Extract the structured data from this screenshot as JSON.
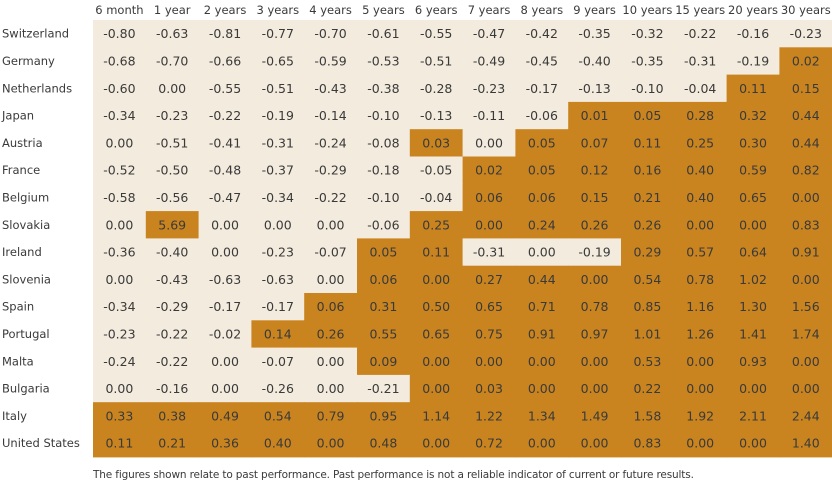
{
  "chart_data": {
    "type": "heatmap",
    "title": "",
    "xlabel": "",
    "ylabel": "",
    "columns": [
      "6 month",
      "1 year",
      "2 years",
      "3 years",
      "4 years",
      "5 years",
      "6 years",
      "7 years",
      "8 years",
      "9 years",
      "10 years",
      "15 years",
      "20 years",
      "30 years"
    ],
    "rows": [
      "Switzerland",
      "Germany",
      "Netherlands",
      "Japan",
      "Austria",
      "France",
      "Belgium",
      "Slovakia",
      "Ireland",
      "Slovenia",
      "Spain",
      "Portugal",
      "Malta",
      "Bulgaria",
      "Italy",
      "United States"
    ],
    "values": [
      [
        "-0.80",
        "-0.63",
        "-0.81",
        "-0.77",
        "-0.70",
        "-0.61",
        "-0.55",
        "-0.47",
        "-0.42",
        "-0.35",
        "-0.32",
        "-0.22",
        "-0.16",
        "-0.23"
      ],
      [
        "-0.68",
        "-0.70",
        "-0.66",
        "-0.65",
        "-0.59",
        "-0.53",
        "-0.51",
        "-0.49",
        "-0.45",
        "-0.40",
        "-0.35",
        "-0.31",
        "-0.19",
        "0.02"
      ],
      [
        "-0.60",
        "0.00",
        "-0.55",
        "-0.51",
        "-0.43",
        "-0.38",
        "-0.28",
        "-0.23",
        "-0.17",
        "-0.13",
        "-0.10",
        "-0.04",
        "0.11",
        "0.15"
      ],
      [
        "-0.34",
        "-0.23",
        "-0.22",
        "-0.19",
        "-0.14",
        "-0.10",
        "-0.13",
        "-0.11",
        "-0.06",
        "0.01",
        "0.05",
        "0.28",
        "0.32",
        "0.44"
      ],
      [
        "0.00",
        "-0.51",
        "-0.41",
        "-0.31",
        "-0.24",
        "-0.08",
        "0.03",
        "0.00",
        "0.05",
        "0.07",
        "0.11",
        "0.25",
        "0.30",
        "0.44"
      ],
      [
        "-0.52",
        "-0.50",
        "-0.48",
        "-0.37",
        "-0.29",
        "-0.18",
        "-0.05",
        "0.02",
        "0.05",
        "0.12",
        "0.16",
        "0.40",
        "0.59",
        "0.82"
      ],
      [
        "-0.58",
        "-0.56",
        "-0.47",
        "-0.34",
        "-0.22",
        "-0.10",
        "-0.04",
        "0.06",
        "0.06",
        "0.15",
        "0.21",
        "0.40",
        "0.65",
        "0.00"
      ],
      [
        "0.00",
        "5.69",
        "0.00",
        "0.00",
        "0.00",
        "-0.06",
        "0.25",
        "0.00",
        "0.24",
        "0.26",
        "0.26",
        "0.00",
        "0.00",
        "0.83"
      ],
      [
        "-0.36",
        "-0.40",
        "0.00",
        "-0.23",
        "-0.07",
        "0.05",
        "0.11",
        "-0.31",
        "0.00",
        "-0.19",
        "0.29",
        "0.57",
        "0.64",
        "0.91"
      ],
      [
        "0.00",
        "-0.43",
        "-0.63",
        "-0.63",
        "0.00",
        "0.06",
        "0.00",
        "0.27",
        "0.44",
        "0.00",
        "0.54",
        "0.78",
        "1.02",
        "0.00"
      ],
      [
        "-0.34",
        "-0.29",
        "-0.17",
        "-0.17",
        "0.06",
        "0.31",
        "0.50",
        "0.65",
        "0.71",
        "0.78",
        "0.85",
        "1.16",
        "1.30",
        "1.56"
      ],
      [
        "-0.23",
        "-0.22",
        "-0.02",
        "0.14",
        "0.26",
        "0.55",
        "0.65",
        "0.75",
        "0.91",
        "0.97",
        "1.01",
        "1.26",
        "1.41",
        "1.74"
      ],
      [
        "-0.24",
        "-0.22",
        "0.00",
        "-0.07",
        "0.00",
        "0.09",
        "0.00",
        "0.00",
        "0.00",
        "0.00",
        "0.53",
        "0.00",
        "0.93",
        "0.00"
      ],
      [
        "0.00",
        "-0.16",
        "0.00",
        "-0.26",
        "0.00",
        "-0.21",
        "0.00",
        "0.03",
        "0.00",
        "0.00",
        "0.22",
        "0.00",
        "0.00",
        "0.00"
      ],
      [
        "0.33",
        "0.38",
        "0.49",
        "0.54",
        "0.79",
        "0.95",
        "1.14",
        "1.22",
        "1.34",
        "1.49",
        "1.58",
        "1.92",
        "2.11",
        "2.44"
      ],
      [
        "0.11",
        "0.21",
        "0.36",
        "0.40",
        "0.00",
        "0.48",
        "0.00",
        "0.72",
        "0.00",
        "0.00",
        "0.83",
        "0.00",
        "0.00",
        "1.40"
      ]
    ],
    "highlighted": [
      [
        0,
        0,
        0,
        0,
        0,
        0,
        0,
        0,
        0,
        0,
        0,
        0,
        0,
        0
      ],
      [
        0,
        0,
        0,
        0,
        0,
        0,
        0,
        0,
        0,
        0,
        0,
        0,
        0,
        1
      ],
      [
        0,
        0,
        0,
        0,
        0,
        0,
        0,
        0,
        0,
        0,
        0,
        0,
        1,
        1
      ],
      [
        0,
        0,
        0,
        0,
        0,
        0,
        0,
        0,
        0,
        1,
        1,
        1,
        1,
        1
      ],
      [
        0,
        0,
        0,
        0,
        0,
        0,
        1,
        0,
        1,
        1,
        1,
        1,
        1,
        1
      ],
      [
        0,
        0,
        0,
        0,
        0,
        0,
        0,
        1,
        1,
        1,
        1,
        1,
        1,
        1
      ],
      [
        0,
        0,
        0,
        0,
        0,
        0,
        0,
        1,
        1,
        1,
        1,
        1,
        1,
        1
      ],
      [
        0,
        1,
        0,
        0,
        0,
        0,
        1,
        1,
        1,
        1,
        1,
        1,
        1,
        1
      ],
      [
        0,
        0,
        0,
        0,
        0,
        1,
        1,
        0,
        0,
        0,
        1,
        1,
        1,
        1
      ],
      [
        0,
        0,
        0,
        0,
        0,
        1,
        1,
        1,
        1,
        1,
        1,
        1,
        1,
        1
      ],
      [
        0,
        0,
        0,
        0,
        1,
        1,
        1,
        1,
        1,
        1,
        1,
        1,
        1,
        1
      ],
      [
        0,
        0,
        0,
        1,
        1,
        1,
        1,
        1,
        1,
        1,
        1,
        1,
        1,
        1
      ],
      [
        0,
        0,
        0,
        0,
        0,
        1,
        1,
        1,
        1,
        1,
        1,
        1,
        1,
        1
      ],
      [
        0,
        0,
        0,
        0,
        0,
        0,
        1,
        1,
        1,
        1,
        1,
        1,
        1,
        1
      ],
      [
        1,
        1,
        1,
        1,
        1,
        1,
        1,
        1,
        1,
        1,
        1,
        1,
        1,
        1
      ],
      [
        1,
        1,
        1,
        1,
        1,
        1,
        1,
        1,
        1,
        1,
        1,
        1,
        1,
        1
      ]
    ]
  },
  "footnote": "The figures shown relate to past performance. Past performance is not a reliable indicator of current or future results.",
  "colors": {
    "highlight": "#c9841f",
    "base": "#f3ebde",
    "text": "#3a3a3a"
  }
}
